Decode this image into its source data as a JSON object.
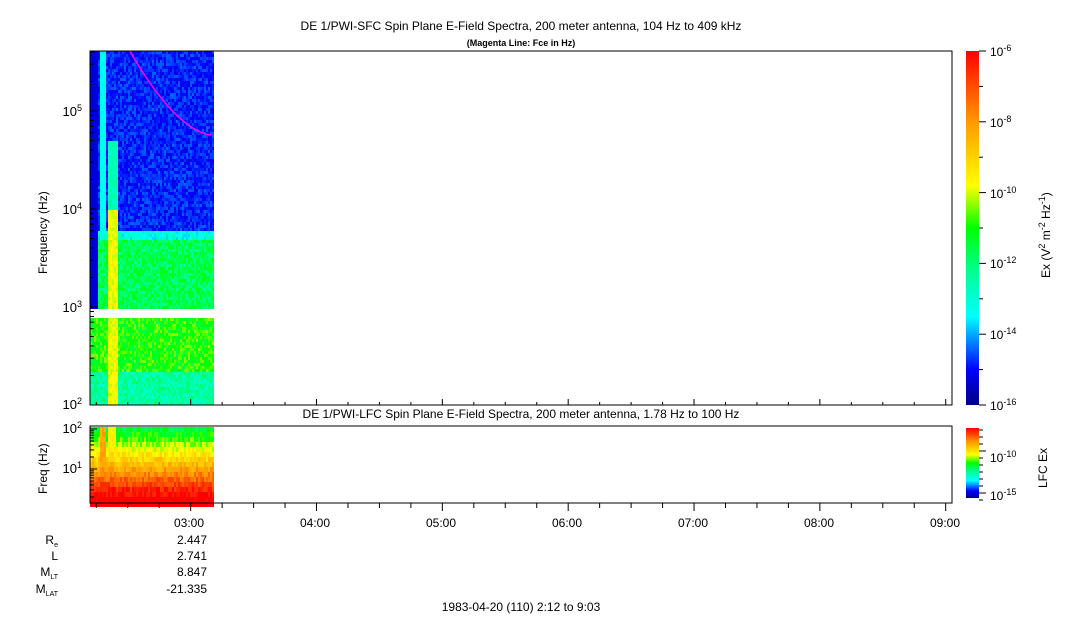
{
  "chart_data": [
    {
      "type": "heatmap",
      "title": "DE 1/PWI-SFC  Spin Plane E-Field Spectra, 200 meter antenna, 104 Hz to 409 kHz",
      "subtitle": "(Magenta Line: Fce in Hz)",
      "ylabel": "Frequency (Hz)",
      "yscale": "log",
      "ylim": [
        100,
        409000
      ],
      "yticks": [
        {
          "base": "10",
          "exp": "2"
        },
        {
          "base": "10",
          "exp": "3"
        },
        {
          "base": "10",
          "exp": "4"
        },
        {
          "base": "10",
          "exp": "5"
        }
      ],
      "xlim": [
        "02:12",
        "09:03"
      ],
      "data_end_time": "03:11",
      "data_gap_freq_hz": 1000,
      "colorbar": {
        "label": "Ex (V",
        "label_parts": [
          "Ex (V",
          "2",
          " m",
          "-2",
          " Hz",
          "-1",
          ")"
        ],
        "scale": "log",
        "range": [
          1e-16,
          1e-06
        ],
        "ticks": [
          {
            "base": "10",
            "exp": "-6"
          },
          {
            "base": "10",
            "exp": "-8"
          },
          {
            "base": "10",
            "exp": "-10"
          },
          {
            "base": "10",
            "exp": "-12"
          },
          {
            "base": "10",
            "exp": "-14"
          },
          {
            "base": "10",
            "exp": "-16"
          }
        ],
        "colormap": [
          "#000080",
          "#0000ff",
          "#00ffff",
          "#00ff90",
          "#00ff00",
          "#ffff00",
          "#ff9900",
          "#ff0000"
        ]
      },
      "fce_line": {
        "color": "#ff00ff",
        "points": [
          [
            "02:31",
            409000
          ],
          [
            "02:50",
            112000
          ],
          [
            "03:10",
            57000
          ]
        ]
      }
    },
    {
      "type": "heatmap",
      "title": "DE 1/PWI-LFC  Spin Plane E-Field Spectra, 200 meter antenna, 1.78 Hz to 100 Hz",
      "ylabel": "Freq (Hz)",
      "yscale": "log",
      "ylim": [
        1.78,
        100
      ],
      "yticks": [
        {
          "base": "10",
          "exp": "2"
        },
        {
          "base": "10",
          "exp": "1"
        }
      ],
      "xlim": [
        "02:12",
        "09:03"
      ],
      "data_end_time": "03:11",
      "colorbar": {
        "label": "LFC Ex",
        "scale": "log",
        "ticks": [
          {
            "base": "10",
            "exp": "-10"
          },
          {
            "base": "10",
            "exp": "-15"
          }
        ]
      }
    }
  ],
  "x_axis": {
    "ticks": [
      "03:00",
      "04:00",
      "05:00",
      "06:00",
      "07:00",
      "08:00",
      "09:00"
    ]
  },
  "ephemeris": [
    {
      "label": "R",
      "sub": "e",
      "value": "2.447"
    },
    {
      "label": "L",
      "sub": "",
      "value": "2.741"
    },
    {
      "label": "M",
      "sub": "LT",
      "value": "8.847"
    },
    {
      "label": "M",
      "sub": "LAT",
      "value": "-21.335"
    }
  ],
  "footer": "1983-04-20 (110) 2:12 to 9:03"
}
